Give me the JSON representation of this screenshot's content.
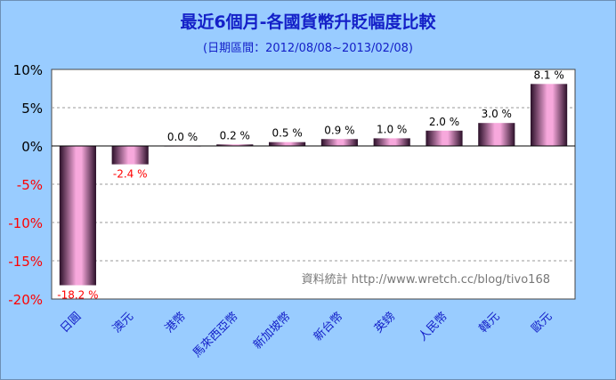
{
  "chart_data": {
    "type": "bar",
    "title": "最近6個月-各國貨幣升貶幅度比較",
    "subtitle": "(日期區間：2012/08/08~2013/02/08)",
    "categories": [
      "日圓",
      "澳元",
      "港幣",
      "馬來西亞幣",
      "新加坡幣",
      "新台幣",
      "英鎊",
      "人民幣",
      "韓元",
      "歐元"
    ],
    "values": [
      -18.2,
      -2.4,
      0.0,
      0.2,
      0.5,
      0.9,
      1.0,
      2.0,
      3.0,
      8.1
    ],
    "value_labels": [
      "-18.2 %",
      "-2.4 %",
      "0.0 %",
      "0.2 %",
      "0.5 %",
      "0.9 %",
      "1.0 %",
      "2.0 %",
      "3.0 %",
      "8.1 %"
    ],
    "yticks": [
      10,
      5,
      0,
      -5,
      -10,
      -15,
      -20
    ],
    "ytick_labels": [
      "10%",
      "5%",
      "0%",
      "-5%",
      "-10%",
      "-15%",
      "-20%"
    ],
    "ylim": [
      -20,
      10
    ],
    "grid": true,
    "xlabel": "",
    "ylabel": "",
    "annotation": "資料統計 http://www.wretch.cc/blog/tivo168",
    "colors": {
      "bar_center": "#f7a8dc",
      "bar_edge": "#2a0f28",
      "positive_label": "#000000",
      "negative_label": "#ff0000",
      "negative_tick": "#ff0000",
      "category_label": "#1420c8",
      "background": "#99ccff",
      "plot_background": "#ffffff"
    }
  }
}
